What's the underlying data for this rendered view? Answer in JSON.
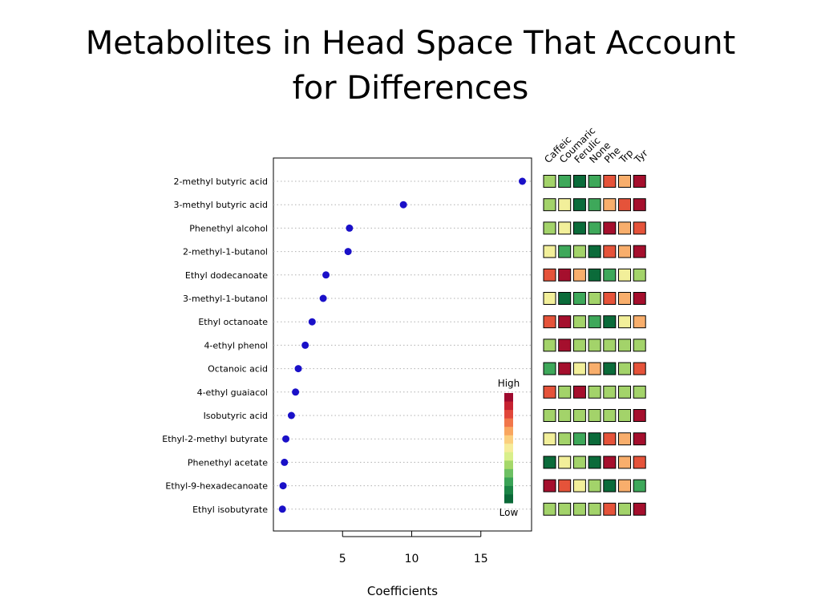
{
  "slide": {
    "title_line1": "Metabolites in Head Space That Account",
    "title_line2": "for Differences"
  },
  "chart_data": [
    {
      "type": "scatter",
      "title": "",
      "xlabel": "Coefficients",
      "ylabel": "",
      "xlim": [
        0,
        18.5
      ],
      "xticks": [
        5,
        10,
        15
      ],
      "grid": "dotted horizontal lines per category",
      "point_color": "#1a10c8",
      "categories": [
        "2-methyl butyric acid",
        "3-methyl butyric acid",
        "Phenethyl alcohol",
        "2-methyl-1-butanol",
        "Ethyl dodecanoate",
        "3-methyl-1-butanol",
        "Ethyl octanoate",
        "4-ethyl phenol",
        "Octanoic acid",
        "4-ethyl guaiacol",
        "Isobutyric acid",
        "Ethyl-2-methyl butyrate",
        "Phenethyl acetate",
        "Ethyl-9-hexadecanoate",
        "Ethyl isobutyrate"
      ],
      "values": [
        18.0,
        9.4,
        5.5,
        5.4,
        3.8,
        3.6,
        2.8,
        2.3,
        1.8,
        1.6,
        1.3,
        0.9,
        0.8,
        0.7,
        0.65
      ]
    },
    {
      "type": "heatmap",
      "columns": [
        "Caffeic",
        "Coumaric",
        "Ferulic",
        "None",
        "Phe",
        "Trp",
        "Tyr"
      ],
      "rows": [
        "2-methyl butyric acid",
        "3-methyl butyric acid",
        "Phenethyl alcohol",
        "2-methyl-1-butanol",
        "Ethyl dodecanoate",
        "3-methyl-1-butanol",
        "Ethyl octanoate",
        "4-ethyl phenol",
        "Octanoic acid",
        "4-ethyl guaiacol",
        "Isobutyric acid",
        "Ethyl-2-methyl butyrate",
        "Phenethyl acetate",
        "Ethyl-9-hexadecanoate",
        "Ethyl isobutyrate"
      ],
      "scale_note": "levels 1 (Low, dark green) to 7 (High, dark red)",
      "values": [
        [
          3,
          2,
          1,
          2,
          6,
          5,
          7
        ],
        [
          3,
          4,
          1,
          2,
          5,
          6,
          7
        ],
        [
          3,
          4,
          1,
          2,
          7,
          5,
          6
        ],
        [
          4,
          2,
          3,
          1,
          6,
          5,
          7
        ],
        [
          6,
          7,
          5,
          1,
          2,
          4,
          3
        ],
        [
          4,
          1,
          2,
          3,
          6,
          5,
          7
        ],
        [
          6,
          7,
          3,
          2,
          1,
          4,
          5
        ],
        [
          3,
          7,
          3,
          3,
          3,
          3,
          3
        ],
        [
          2,
          7,
          4,
          5,
          1,
          3,
          6
        ],
        [
          6,
          3,
          7,
          3,
          3,
          3,
          3
        ],
        [
          3,
          3,
          3,
          3,
          3,
          3,
          7
        ],
        [
          4,
          3,
          2,
          1,
          6,
          5,
          7
        ],
        [
          1,
          4,
          3,
          1,
          7,
          5,
          6
        ],
        [
          7,
          6,
          4,
          3,
          1,
          5,
          2
        ],
        [
          3,
          3,
          3,
          3,
          6,
          3,
          7
        ]
      ],
      "palette": [
        "#0b6b3a",
        "#3ea85a",
        "#a3d36a",
        "#f2ef9a",
        "#f8ae6c",
        "#e5533a",
        "#a50f2d"
      ],
      "legend": {
        "high": "High",
        "low": "Low"
      }
    }
  ]
}
